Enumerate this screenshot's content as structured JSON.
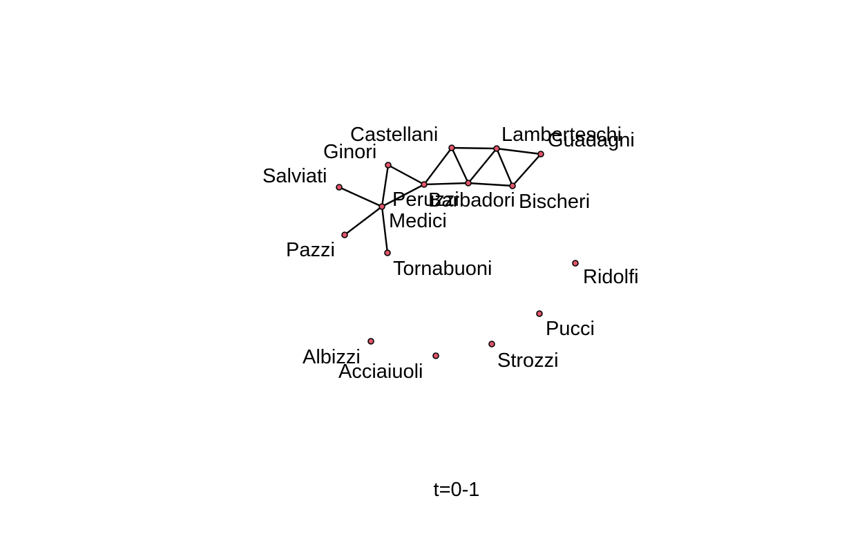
{
  "colors": {
    "node_fill": "#e0556b",
    "node_stroke": "#000000",
    "edge": "#000000",
    "text": "#000000",
    "background": "#ffffff"
  },
  "caption": "t=0-1",
  "nodes": [
    {
      "id": "castellani",
      "label": "Castellani"
    },
    {
      "id": "lamberteschi",
      "label": "Lamberteschi"
    },
    {
      "id": "guadagni",
      "label": "Guadagni"
    },
    {
      "id": "ginori",
      "label": "Ginori"
    },
    {
      "id": "salviati",
      "label": "Salviati"
    },
    {
      "id": "peruzzi",
      "label": "Peruzzi"
    },
    {
      "id": "barbadori",
      "label": "Barbadori"
    },
    {
      "id": "bischeri",
      "label": "Bischeri"
    },
    {
      "id": "medici",
      "label": "Medici"
    },
    {
      "id": "pazzi",
      "label": "Pazzi"
    },
    {
      "id": "tornabuoni",
      "label": "Tornabuoni"
    },
    {
      "id": "ridolfi",
      "label": "Ridolfi"
    },
    {
      "id": "pucci",
      "label": "Pucci"
    },
    {
      "id": "albizzi",
      "label": "Albizzi"
    },
    {
      "id": "strozzi",
      "label": "Strozzi"
    },
    {
      "id": "acciaiuoli",
      "label": "Acciaiuoli"
    }
  ],
  "edges": [
    [
      "ginori",
      "medici"
    ],
    [
      "ginori",
      "peruzzi"
    ],
    [
      "salviati",
      "medici"
    ],
    [
      "pazzi",
      "medici"
    ],
    [
      "tornabuoni",
      "medici"
    ],
    [
      "medici",
      "peruzzi"
    ],
    [
      "peruzzi",
      "castellani"
    ],
    [
      "peruzzi",
      "barbadori"
    ],
    [
      "castellani",
      "barbadori"
    ],
    [
      "castellani",
      "lamberteschi"
    ],
    [
      "lamberteschi",
      "barbadori"
    ],
    [
      "lamberteschi",
      "bischeri"
    ],
    [
      "lamberteschi",
      "guadagni"
    ],
    [
      "barbadori",
      "bischeri"
    ],
    [
      "guadagni",
      "bischeri"
    ]
  ]
}
